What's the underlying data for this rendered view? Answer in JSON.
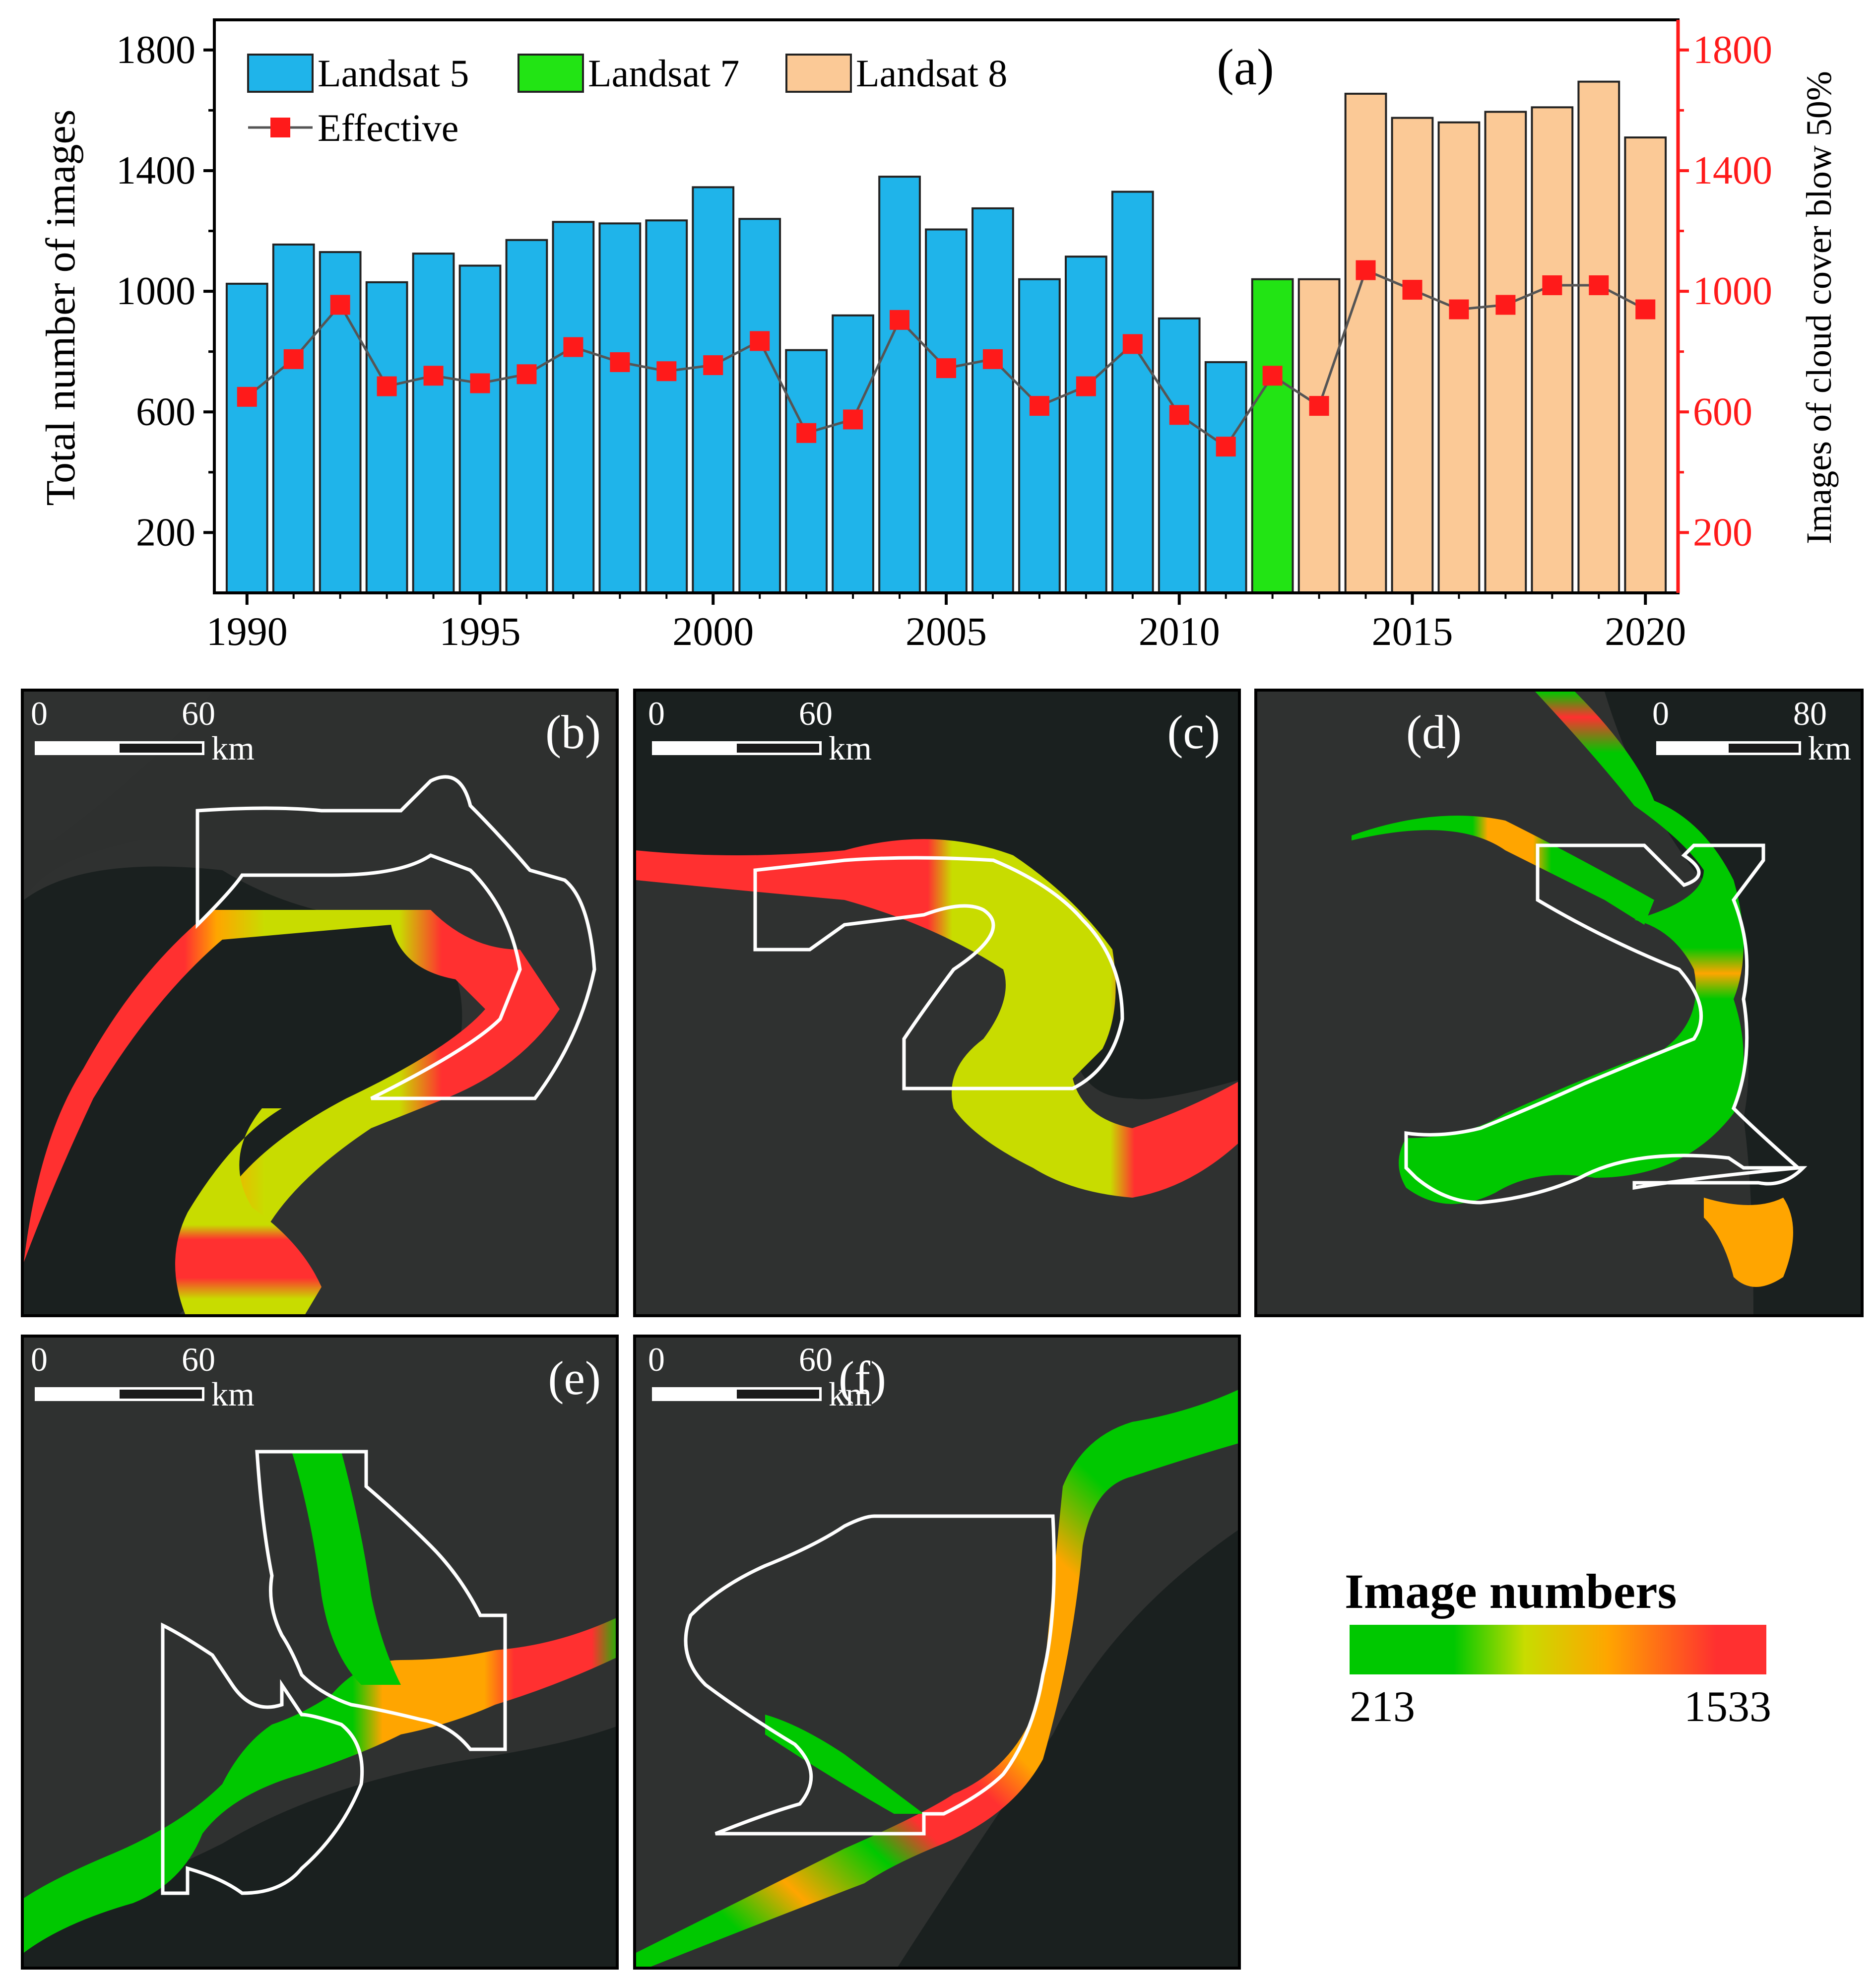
{
  "chart_data": {
    "type": "bar",
    "panel_label": "(a)",
    "categories": [
      1990,
      1991,
      1992,
      1993,
      1994,
      1995,
      1996,
      1997,
      1998,
      1999,
      2000,
      2001,
      2002,
      2003,
      2004,
      2005,
      2006,
      2007,
      2008,
      2009,
      2010,
      2011,
      2012,
      2013,
      2014,
      2015,
      2016,
      2017,
      2018,
      2019,
      2020
    ],
    "sensor": [
      "Landsat 5",
      "Landsat 5",
      "Landsat 5",
      "Landsat 5",
      "Landsat 5",
      "Landsat 5",
      "Landsat 5",
      "Landsat 5",
      "Landsat 5",
      "Landsat 5",
      "Landsat 5",
      "Landsat 5",
      "Landsat 5",
      "Landsat 5",
      "Landsat 5",
      "Landsat 5",
      "Landsat 5",
      "Landsat 5",
      "Landsat 5",
      "Landsat 5",
      "Landsat 5",
      "Landsat 5",
      "Landsat 7",
      "Landsat 8",
      "Landsat 8",
      "Landsat 8",
      "Landsat 8",
      "Landsat 8",
      "Landsat 8",
      "Landsat 8",
      "Landsat 8"
    ],
    "series": [
      {
        "name": "Total",
        "values": [
          1025,
          1155,
          1130,
          1030,
          1125,
          1085,
          1170,
          1230,
          1225,
          1235,
          1345,
          1240,
          805,
          920,
          1380,
          1205,
          1275,
          1040,
          1115,
          1330,
          910,
          765,
          1040,
          1040,
          1655,
          1575,
          1560,
          1595,
          1610,
          1695,
          1510
        ]
      },
      {
        "name": "Effective",
        "values": [
          650,
          775,
          955,
          685,
          720,
          695,
          725,
          815,
          765,
          735,
          755,
          835,
          530,
          575,
          905,
          745,
          775,
          620,
          685,
          825,
          590,
          485,
          720,
          620,
          1070,
          1005,
          940,
          955,
          1020,
          1020,
          940
        ]
      }
    ],
    "legend": [
      {
        "label": "Landsat 5",
        "color": "#1fb4ea"
      },
      {
        "label": "Landsat 7",
        "color": "#22e414"
      },
      {
        "label": "Landsat 8",
        "color": "#fbc996"
      },
      {
        "label": "Effective",
        "color": "#ff1a1a"
      }
    ],
    "ylabel": "Total number of images",
    "y2label": "Images of cloud cover blow 50%",
    "ylim": [
      0,
      1900
    ],
    "xlim": [
      1989.3,
      2020.7
    ],
    "yticks": [
      200,
      600,
      1000,
      1400,
      1800
    ],
    "y2ticks": [
      200,
      600,
      1000,
      1400,
      1800
    ],
    "xticks": [
      1990,
      1995,
      2000,
      2005,
      2010,
      2015,
      2020
    ],
    "xlabel": ""
  },
  "maps": [
    {
      "id": "b",
      "label": "(b)",
      "scale_start": "0",
      "scale_end": "60",
      "unit": "km"
    },
    {
      "id": "c",
      "label": "(c)",
      "scale_start": "0",
      "scale_end": "60",
      "unit": "km"
    },
    {
      "id": "d",
      "label": "(d)",
      "scale_start": "0",
      "scale_end": "80",
      "unit": "km"
    },
    {
      "id": "e",
      "label": "(e)",
      "scale_start": "0",
      "scale_end": "60",
      "unit": "km"
    },
    {
      "id": "f",
      "label": "(f)",
      "scale_start": "0",
      "scale_end": "60",
      "unit": "km"
    }
  ],
  "colorbar": {
    "title": "Image numbers",
    "min": "213",
    "max": "1533",
    "color_low": "#00c800",
    "color_mid": "#c8dc00",
    "color_orange": "#ffa500",
    "color_high": "#ff3030"
  }
}
